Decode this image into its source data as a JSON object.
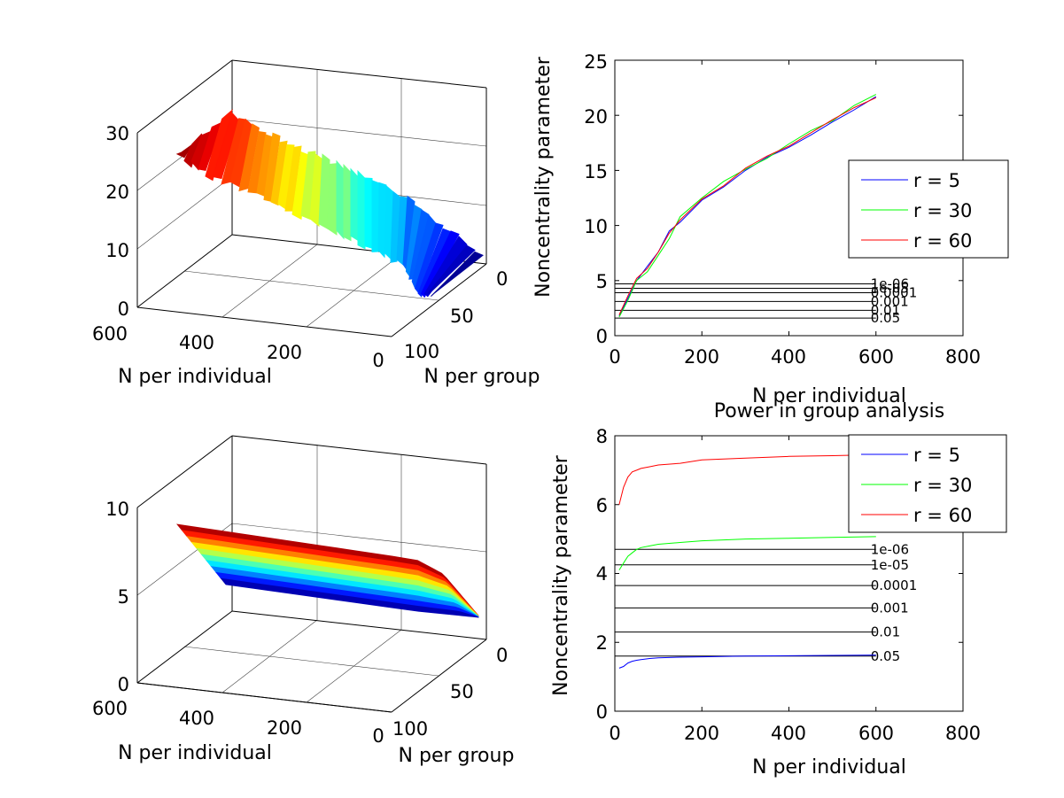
{
  "colors": {
    "r5": "#0000ff",
    "r30": "#00ff00",
    "r60": "#ff0000",
    "threshold": "#000000",
    "colormap": "jet"
  },
  "panels": {
    "top_left": {
      "xlabel": "N per individual",
      "ylabel": "N per group",
      "x_ticks": [
        "600",
        "400",
        "200",
        "0"
      ],
      "y_ticks": [
        "0",
        "50",
        "100"
      ],
      "z_ticks": [
        "0",
        "10",
        "20",
        "30"
      ]
    },
    "bottom_left": {
      "xlabel": "N per individual",
      "ylabel": "N per group",
      "x_ticks": [
        "600",
        "400",
        "200",
        "0"
      ],
      "y_ticks": [
        "0",
        "50",
        "100"
      ],
      "z_ticks": [
        "0",
        "5",
        "10"
      ]
    },
    "top_right": {
      "title": "",
      "xlabel": "N per individual",
      "ylabel": "Noncentrality parameter",
      "x_ticks": [
        "0",
        "200",
        "400",
        "600",
        "800"
      ],
      "y_ticks": [
        "0",
        "5",
        "10",
        "15",
        "20",
        "25"
      ],
      "legend": [
        "r = 5",
        "r = 30",
        "r = 60"
      ],
      "thresholds": [
        "1e-06",
        "1e-05",
        "0.0001",
        "0.001",
        "0.01",
        "0.05"
      ]
    },
    "bottom_right": {
      "title": "Power in group analysis",
      "xlabel": "N per individual",
      "ylabel": "Noncentrality parameter",
      "x_ticks": [
        "0",
        "200",
        "400",
        "600",
        "800"
      ],
      "y_ticks": [
        "0",
        "2",
        "4",
        "6",
        "8"
      ],
      "legend": [
        "r = 5",
        "r = 30",
        "r = 60"
      ],
      "thresholds": [
        "1e-06",
        "1e-05",
        "0.0001",
        "0.001",
        "0.01",
        "0.05"
      ]
    }
  },
  "chart_data": [
    {
      "type": "surface",
      "panel": "top_left",
      "x_label": "N per individual",
      "y_label": "N per group",
      "x_range": [
        0,
        600
      ],
      "y_range": [
        0,
        100
      ],
      "z_range": [
        0,
        30
      ],
      "n_per_individual": [
        600,
        500,
        400,
        300,
        200,
        100,
        0
      ],
      "z_at_group_0": [
        28,
        25,
        23,
        20,
        16,
        10,
        3
      ],
      "grid": true
    },
    {
      "type": "surface",
      "panel": "bottom_left",
      "x_label": "N per individual",
      "y_label": "N per group",
      "x_range": [
        0,
        600
      ],
      "y_range": [
        0,
        100
      ],
      "z_range": [
        0,
        10
      ],
      "grid": true
    },
    {
      "type": "line",
      "panel": "top_right",
      "xlabel": "N per individual",
      "ylabel": "Noncentrality parameter",
      "xlim": [
        0,
        800
      ],
      "ylim": [
        0,
        25
      ],
      "x": [
        10,
        30,
        50,
        75,
        100,
        125,
        150,
        200,
        250,
        300,
        350,
        400,
        450,
        500,
        550,
        600
      ],
      "series": [
        {
          "name": "r = 5",
          "values": [
            1.8,
            3.4,
            5.0,
            6.3,
            7.6,
            9.5,
            10.3,
            12.3,
            13.5,
            15.0,
            16.2,
            17.1,
            18.2,
            19.4,
            20.5,
            21.7
          ]
        },
        {
          "name": "r = 30",
          "values": [
            1.7,
            3.2,
            5.0,
            5.8,
            7.3,
            8.8,
            10.8,
            12.5,
            14.0,
            15.1,
            16.1,
            17.4,
            18.6,
            19.5,
            20.9,
            21.9
          ]
        },
        {
          "name": "r = 60",
          "values": [
            1.9,
            3.6,
            5.2,
            6.1,
            7.6,
            9.3,
            10.5,
            12.4,
            13.6,
            15.2,
            16.3,
            17.2,
            18.4,
            19.6,
            20.7,
            21.6
          ]
        }
      ],
      "threshold_lines": [
        {
          "label": "1e-06",
          "y": 4.7
        },
        {
          "label": "1e-05",
          "y": 4.3
        },
        {
          "label": "0.0001",
          "y": 3.9
        },
        {
          "label": "0.001",
          "y": 3.1
        },
        {
          "label": "0.01",
          "y": 2.3
        },
        {
          "label": "0.05",
          "y": 1.6
        }
      ],
      "legend_position": "right"
    },
    {
      "type": "line",
      "panel": "bottom_right",
      "title": "Power in group analysis",
      "xlabel": "N per individual",
      "ylabel": "Noncentrality parameter",
      "xlim": [
        0,
        800
      ],
      "ylim": [
        0,
        8
      ],
      "x": [
        10,
        20,
        30,
        40,
        50,
        60,
        80,
        100,
        150,
        200,
        300,
        400,
        500,
        600
      ],
      "series": [
        {
          "name": "r = 5",
          "values": [
            1.25,
            1.3,
            1.4,
            1.45,
            1.48,
            1.5,
            1.53,
            1.55,
            1.57,
            1.58,
            1.6,
            1.61,
            1.62,
            1.63
          ]
        },
        {
          "name": "r = 30",
          "values": [
            4.1,
            4.3,
            4.5,
            4.6,
            4.7,
            4.75,
            4.8,
            4.85,
            4.9,
            4.95,
            5.0,
            5.02,
            5.05,
            5.07
          ]
        },
        {
          "name": "r = 60",
          "values": [
            6.0,
            6.5,
            6.8,
            6.95,
            7.0,
            7.05,
            7.1,
            7.15,
            7.2,
            7.3,
            7.35,
            7.4,
            7.42,
            7.45
          ]
        }
      ],
      "threshold_lines": [
        {
          "label": "1e-06",
          "y": 4.7
        },
        {
          "label": "1e-05",
          "y": 4.25
        },
        {
          "label": "0.0001",
          "y": 3.65
        },
        {
          "label": "0.001",
          "y": 3.0
        },
        {
          "label": "0.01",
          "y": 2.3
        },
        {
          "label": "0.05",
          "y": 1.6
        }
      ],
      "legend_position": "top-right"
    }
  ]
}
